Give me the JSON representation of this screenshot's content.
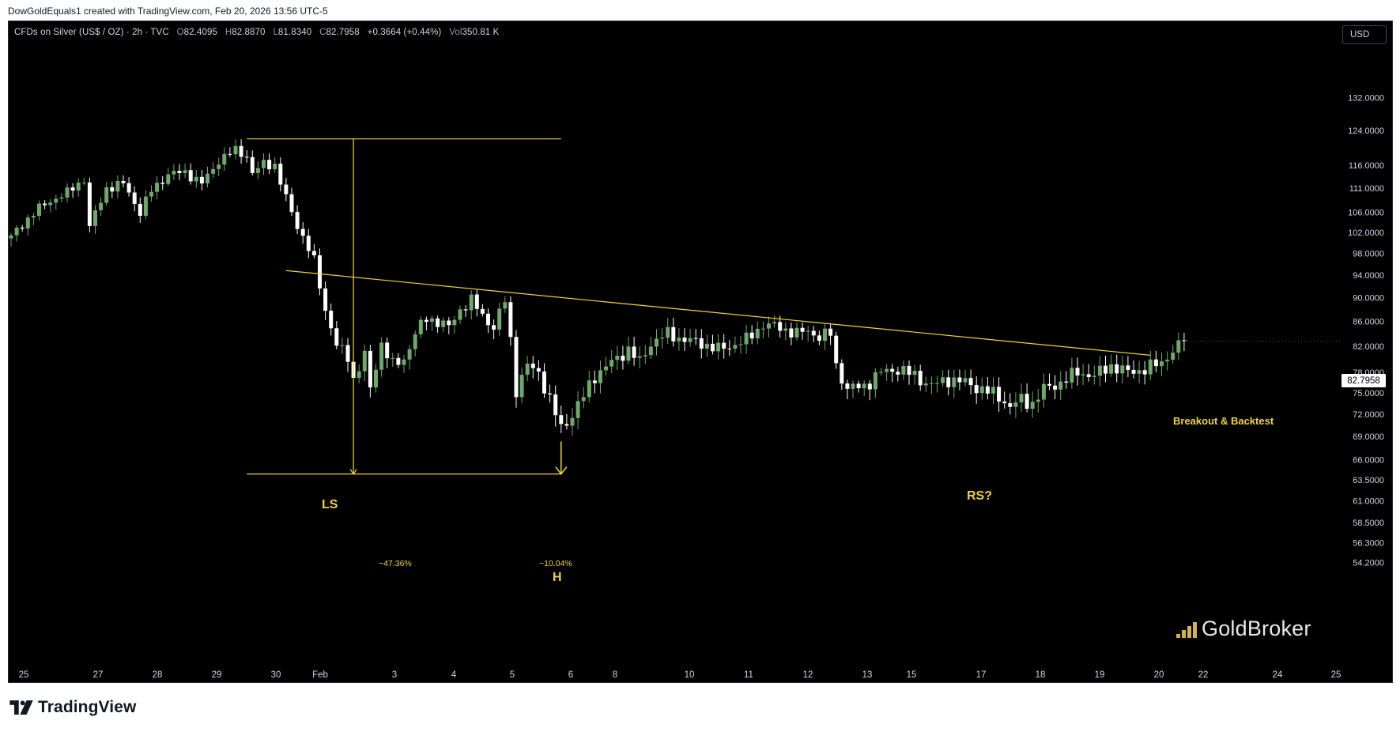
{
  "header": {
    "attribution": "DowGoldEquals1 created with TradingView.com, Feb 20, 2026 13:56 UTC-5"
  },
  "legend": {
    "symbol": "CFDs on Silver (US$ / OZ) · 2h · TVC",
    "open_label": "O",
    "open": "82.4095",
    "high_label": "H",
    "high": "82.8870",
    "low_label": "L",
    "low": "81.8340",
    "close_label": "C",
    "close": "82.7958",
    "change": "+0.3664 (+0.44%)",
    "vol_label": "Vol",
    "volume": "350.81 K"
  },
  "currency": "USD",
  "last_price": "82.7958",
  "annotations": {
    "ls": "LS",
    "h": "H",
    "rs": "RS?",
    "breakout": "Breakout & Backtest",
    "measure_left_pct": "−47.36%",
    "measure_right_pct": "−10.04%"
  },
  "watermark": "GoldBroker",
  "footer": {
    "brand": "TradingView"
  },
  "colors": {
    "background": "#000000",
    "up_candle": "#6fa86b",
    "down_candle": "#ffffff",
    "annotation": "#f2d43a",
    "axis_text": "#d1d4dc"
  },
  "chart_data": {
    "type": "candlestick",
    "title": "CFDs on Silver (US$ / OZ) · 2h · TVC",
    "scale": "log",
    "ylim": [
      53.0,
      137.0
    ],
    "y_ticks": [
      "132.0000",
      "124.0000",
      "116.0000",
      "111.0000",
      "106.0000",
      "102.0000",
      "98.0000",
      "94.0000",
      "90.0000",
      "86.0000",
      "82.0000",
      "78.0000",
      "75.0000",
      "72.0000",
      "69.0000",
      "66.0000",
      "63.5000",
      "61.0000",
      "58.5000",
      "56.3000",
      "54.2000"
    ],
    "x_ticks": [
      "25",
      "27",
      "28",
      "29",
      "30",
      "Feb",
      "3",
      "4",
      "5",
      "6",
      "8",
      "10",
      "11",
      "12",
      "13",
      "15",
      "17",
      "18",
      "19",
      "20",
      "22",
      "24",
      "25"
    ],
    "last_close": 82.7958,
    "anchors": [
      [
        0,
        101.0
      ],
      [
        4,
        106.0
      ],
      [
        8,
        109.0
      ],
      [
        10,
        110.0
      ],
      [
        13,
        113.0
      ],
      [
        14,
        103.0
      ],
      [
        17,
        111.0
      ],
      [
        20,
        112.0
      ],
      [
        23,
        106.0
      ],
      [
        25,
        110.5
      ],
      [
        28,
        114.0
      ],
      [
        31,
        114.5
      ],
      [
        34,
        112.0
      ],
      [
        37,
        117.0
      ],
      [
        40,
        119.5
      ],
      [
        42,
        118.0
      ],
      [
        43,
        114.0
      ],
      [
        45,
        116.5
      ],
      [
        47,
        116.0
      ],
      [
        48,
        112.0
      ],
      [
        50,
        106.0
      ],
      [
        52,
        101.0
      ],
      [
        54,
        96.5
      ],
      [
        56,
        88.0
      ],
      [
        58,
        82.0
      ],
      [
        60,
        80.5
      ],
      [
        61,
        77.0
      ],
      [
        63,
        80.5
      ],
      [
        64,
        75.5
      ],
      [
        66,
        82.5
      ],
      [
        68,
        79.0
      ],
      [
        70,
        80.0
      ],
      [
        72,
        84.0
      ],
      [
        74,
        86.5
      ],
      [
        76,
        86.0
      ],
      [
        78,
        85.0
      ],
      [
        80,
        88.0
      ],
      [
        82,
        89.5
      ],
      [
        84,
        87.0
      ],
      [
        86,
        85.0
      ],
      [
        88,
        89.5
      ],
      [
        89,
        83.0
      ],
      [
        90,
        75.5
      ],
      [
        92,
        79.0
      ],
      [
        94,
        78.0
      ],
      [
        96,
        74.0
      ],
      [
        98,
        70.0
      ],
      [
        100,
        72.0
      ],
      [
        102,
        74.5
      ],
      [
        104,
        77.5
      ],
      [
        107,
        79.5
      ],
      [
        110,
        81.5
      ],
      [
        112,
        79.5
      ],
      [
        114,
        82.5
      ],
      [
        117,
        84.0
      ],
      [
        120,
        83.0
      ],
      [
        123,
        82.5
      ],
      [
        126,
        81.5
      ],
      [
        128,
        82.0
      ],
      [
        131,
        83.0
      ],
      [
        134,
        85.5
      ],
      [
        137,
        85.0
      ],
      [
        140,
        84.0
      ],
      [
        142,
        84.5
      ],
      [
        144,
        83.5
      ],
      [
        146,
        84.0
      ],
      [
        147,
        79.0
      ],
      [
        149,
        75.5
      ],
      [
        152,
        76.0
      ],
      [
        155,
        78.0
      ],
      [
        158,
        78.5
      ],
      [
        161,
        77.5
      ],
      [
        164,
        76.0
      ],
      [
        167,
        77.0
      ],
      [
        170,
        76.5
      ],
      [
        173,
        75.5
      ],
      [
        176,
        74.5
      ],
      [
        178,
        73.0
      ],
      [
        180,
        74.0
      ],
      [
        182,
        73.5
      ],
      [
        184,
        75.5
      ],
      [
        187,
        76.5
      ],
      [
        190,
        78.0
      ],
      [
        193,
        77.5
      ],
      [
        196,
        79.0
      ],
      [
        199,
        78.0
      ],
      [
        202,
        78.5
      ],
      [
        205,
        79.5
      ],
      [
        206,
        80.5
      ],
      [
        208,
        82.0
      ],
      [
        209,
        82.8
      ]
    ],
    "trendlines": [
      {
        "name": "neckline",
        "from": [
          49,
          94.8
        ],
        "to": [
          203,
          80.6
        ]
      },
      {
        "name": "measure-top",
        "from": [
          42,
          122.0
        ],
        "to": [
          98,
          122.0
        ]
      },
      {
        "name": "measure-bottom",
        "from": [
          42,
          64.2
        ],
        "to": [
          98,
          64.2
        ]
      }
    ]
  }
}
